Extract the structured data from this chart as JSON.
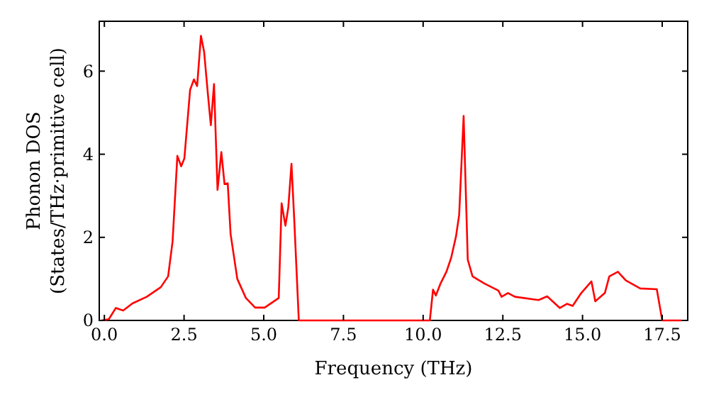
{
  "chart_data": {
    "type": "line",
    "xlabel": "Frequency (THz)",
    "ylabel": "Phonon DOS\n(States/THz·primitive cell)",
    "xlim": [
      -0.16,
      18.3
    ],
    "ylim": [
      0,
      7.2
    ],
    "xticks": [
      {
        "value": 0,
        "label": "0.0"
      },
      {
        "value": 2.5,
        "label": "2.5"
      },
      {
        "value": 5,
        "label": "5.0"
      },
      {
        "value": 7.5,
        "label": "7.5"
      },
      {
        "value": 10,
        "label": "10.0"
      },
      {
        "value": 12.5,
        "label": "12.5"
      },
      {
        "value": 15,
        "label": "15.0"
      },
      {
        "value": 17.5,
        "label": "17.5"
      }
    ],
    "yticks": [
      0,
      2,
      4,
      6
    ],
    "grid": false,
    "marker": "none",
    "line_style": "solid",
    "series": [
      {
        "color": "#ff0000",
        "x": [
          -0.08,
          0.14,
          0.36,
          0.59,
          0.88,
          1.33,
          1.77,
          2.0,
          2.14,
          2.29,
          2.41,
          2.51,
          2.69,
          2.81,
          2.91,
          3.03,
          3.13,
          3.25,
          3.34,
          3.44,
          3.55,
          3.67,
          3.77,
          3.87,
          3.96,
          4.17,
          4.44,
          4.73,
          5.03,
          5.47,
          5.56,
          5.68,
          5.77,
          5.87,
          5.96,
          6.1,
          10.21,
          10.31,
          10.4,
          10.54,
          10.73,
          10.88,
          11.03,
          11.13,
          11.27,
          11.4,
          11.55,
          11.92,
          12.36,
          12.46,
          12.66,
          12.88,
          13.62,
          13.89,
          14.29,
          14.51,
          14.69,
          14.96,
          15.28,
          15.4,
          15.7,
          15.84,
          16.11,
          16.36,
          16.81,
          17.33,
          17.5,
          18.1
        ],
        "values": [
          0,
          0.03,
          0.3,
          0.24,
          0.41,
          0.57,
          0.8,
          1.06,
          1.9,
          3.96,
          3.71,
          3.9,
          5.55,
          5.8,
          5.64,
          6.85,
          6.46,
          5.43,
          4.7,
          5.69,
          3.14,
          4.05,
          3.28,
          3.3,
          2.08,
          1.0,
          0.54,
          0.31,
          0.31,
          0.54,
          2.82,
          2.28,
          2.72,
          3.77,
          2.37,
          0,
          0,
          0.74,
          0.6,
          0.88,
          1.17,
          1.51,
          2.02,
          2.54,
          4.92,
          1.46,
          1.06,
          0.89,
          0.72,
          0.57,
          0.66,
          0.57,
          0.49,
          0.58,
          0.3,
          0.4,
          0.35,
          0.66,
          0.94,
          0.46,
          0.66,
          1.06,
          1.17,
          0.96,
          0.77,
          0.75,
          0,
          0
        ]
      }
    ]
  }
}
